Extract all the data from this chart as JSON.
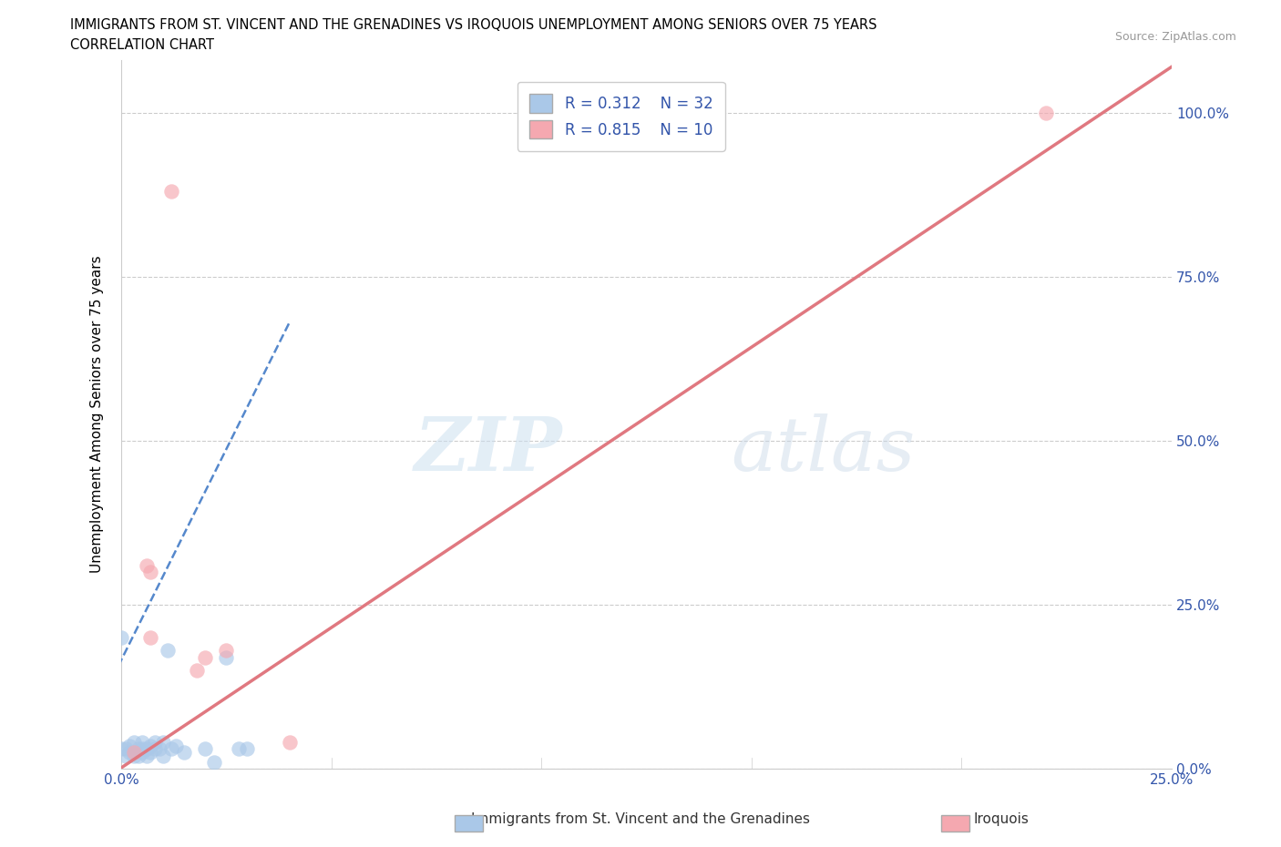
{
  "title_line1": "IMMIGRANTS FROM ST. VINCENT AND THE GRENADINES VS IROQUOIS UNEMPLOYMENT AMONG SENIORS OVER 75 YEARS",
  "title_line2": "CORRELATION CHART",
  "source": "Source: ZipAtlas.com",
  "ylabel": "Unemployment Among Seniors over 75 years",
  "xlim": [
    0.0,
    0.25
  ],
  "ylim": [
    0.0,
    1.08
  ],
  "xticks": [
    0.0,
    0.05,
    0.1,
    0.15,
    0.2,
    0.25
  ],
  "yticks": [
    0.0,
    0.25,
    0.5,
    0.75,
    1.0
  ],
  "xtick_labels": [
    "0.0%",
    "",
    "",
    "",
    "",
    "25.0%"
  ],
  "ytick_labels_right": [
    "0.0%",
    "25.0%",
    "50.0%",
    "75.0%",
    "100.0%"
  ],
  "blue_R": 0.312,
  "blue_N": 32,
  "pink_R": 0.815,
  "pink_N": 10,
  "blue_color": "#aac8e8",
  "pink_color": "#f5a8b0",
  "blue_line_color": "#5588cc",
  "pink_line_color": "#e07880",
  "blue_scatter_x": [
    0.0,
    0.0,
    0.001,
    0.001,
    0.002,
    0.002,
    0.003,
    0.003,
    0.003,
    0.004,
    0.004,
    0.005,
    0.005,
    0.005,
    0.006,
    0.006,
    0.007,
    0.007,
    0.008,
    0.008,
    0.009,
    0.01,
    0.01,
    0.011,
    0.012,
    0.013,
    0.015,
    0.02,
    0.022,
    0.025,
    0.028,
    0.03
  ],
  "blue_scatter_y": [
    0.2,
    0.03,
    0.02,
    0.03,
    0.025,
    0.035,
    0.02,
    0.025,
    0.04,
    0.02,
    0.03,
    0.025,
    0.03,
    0.04,
    0.02,
    0.03,
    0.025,
    0.035,
    0.03,
    0.04,
    0.03,
    0.02,
    0.04,
    0.18,
    0.03,
    0.035,
    0.025,
    0.03,
    0.01,
    0.17,
    0.03,
    0.03
  ],
  "pink_scatter_x": [
    0.012,
    0.003,
    0.006,
    0.007,
    0.007,
    0.018,
    0.02,
    0.025,
    0.04,
    0.22
  ],
  "pink_scatter_y": [
    0.88,
    0.025,
    0.31,
    0.3,
    0.2,
    0.15,
    0.17,
    0.18,
    0.04,
    1.0
  ],
  "blue_trend_x": [
    -0.002,
    0.04
  ],
  "blue_trend_y": [
    0.14,
    0.68
  ],
  "pink_trend_x": [
    -0.005,
    0.25
  ],
  "pink_trend_y": [
    -0.02,
    1.07
  ],
  "watermark_zip": "ZIP",
  "watermark_atlas": "atlas",
  "bottom_legend_label1": "Immigrants from St. Vincent and the Grenadines",
  "bottom_legend_label2": "Iroquois"
}
